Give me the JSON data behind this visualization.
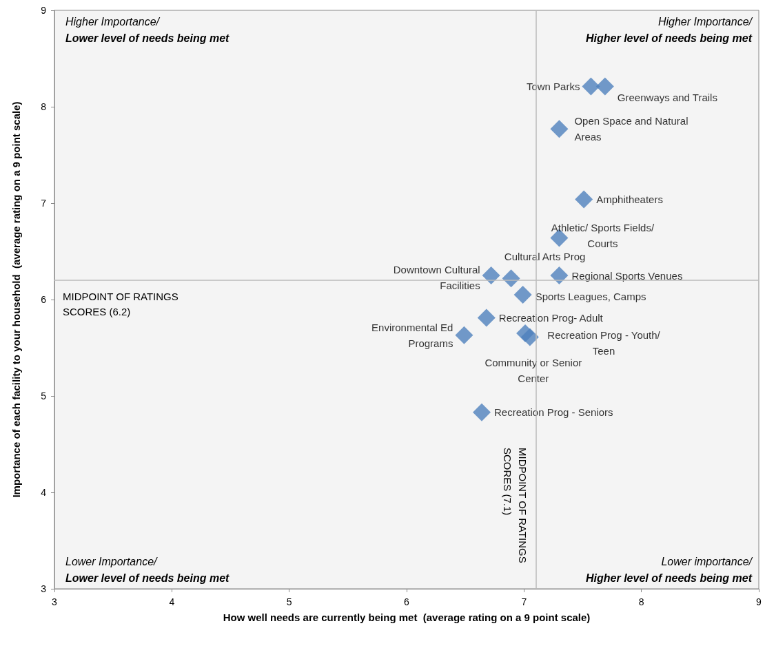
{
  "chart_data": {
    "type": "scatter",
    "xlabel": "How well needs are currently being met  (average rating on a 9 point scale)",
    "ylabel": "Importance of each facility to your household  (average rating on a 9 point scale)",
    "xlim": [
      3,
      9
    ],
    "xticks": [
      3,
      4,
      5,
      6,
      7,
      8,
      9
    ],
    "ylim": [
      3,
      9
    ],
    "yticks": [
      3,
      4,
      5,
      6,
      7,
      8,
      9
    ],
    "grid": false,
    "marker": "diamond",
    "series": [
      {
        "color": "#4f81bd",
        "x": [
          7.57,
          7.69,
          7.3,
          7.51,
          7.3,
          7.3,
          6.72,
          6.89,
          6.99,
          6.68,
          6.49,
          7.01,
          7.05,
          6.64
        ],
        "values": [
          8.21,
          8.21,
          7.77,
          7.04,
          6.64,
          6.25,
          6.25,
          6.22,
          6.05,
          5.81,
          5.63,
          5.65,
          5.61,
          4.83
        ],
        "value_labels": [
          "Town Parks",
          "Greenways and Trails",
          "Open Space and Natural\nAreas",
          "Amphitheaters",
          "Athletic/ Sports Fields/\nCourts",
          "Regional Sports Venues",
          "Downtown Cultural\nFacilities",
          "Cultural Arts Prog",
          "Sports Leagues, Camps",
          "Recreation Prog- Adult",
          "Environmental Ed\nPrograms",
          "Recreation Prog - Youth/\nTeen",
          "Community or Senior\nCenter",
          "Recreation Prog - Seniors"
        ]
      }
    ],
    "ref_lines": [
      {
        "axis": "y",
        "value": 6.2,
        "label": "MIDPOINT OF RATINGS\nSCORES (6.2)"
      },
      {
        "axis": "x",
        "value": 7.1,
        "label": "MIDPOINT OF RATINGS\nSCORES (7.1)"
      }
    ],
    "annotations": [
      "Higher Importance/\nLower level of needs being met",
      "Higher Importance/\nHigher level of needs being met",
      "Lower Importance/\nLower level of needs being met",
      "Lower importance/\nHigher level of needs being met"
    ]
  }
}
